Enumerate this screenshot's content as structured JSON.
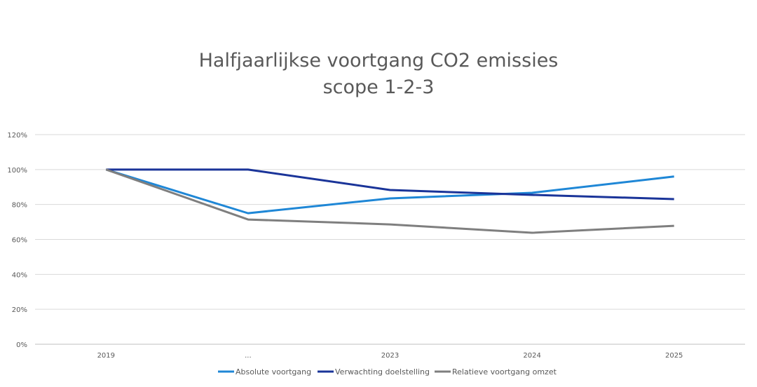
{
  "chart_data": {
    "type": "line",
    "title": [
      "Halfjaarlijkse voortgang CO2 emissies",
      "scope 1-2-3"
    ],
    "categories": [
      "2019",
      "...",
      "2023",
      "2024",
      "2025"
    ],
    "ylim": [
      0,
      120
    ],
    "yticks": [
      "0%",
      "20%",
      "40%",
      "60%",
      "80%",
      "100%",
      "120%"
    ],
    "grid": true,
    "legend": "bottom",
    "series": [
      {
        "name": "Absolute voortgang",
        "color": "#1f87d6",
        "values": [
          100,
          75,
          83.5,
          86.7,
          96
        ]
      },
      {
        "name": "Verwachting doelstelling",
        "color": "#1a3499",
        "values": [
          100,
          100,
          88.3,
          85.5,
          83.1
        ]
      },
      {
        "name": "Relatieve voortgang omzet",
        "color": "#7f7f7f",
        "values": [
          100,
          71.4,
          68.6,
          63.8,
          67.8
        ]
      }
    ]
  }
}
